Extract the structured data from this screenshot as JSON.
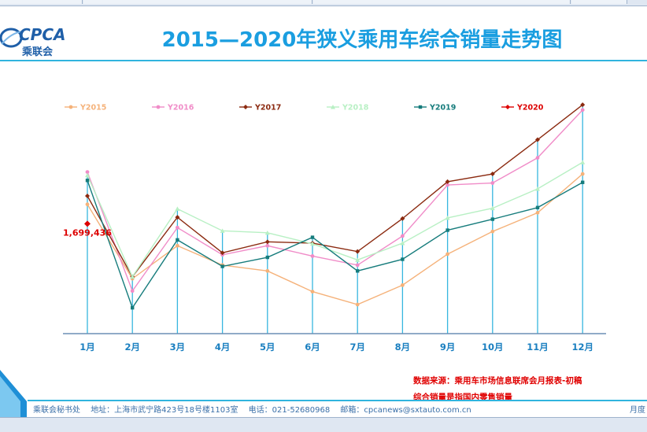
{
  "title": "2015—2020年狭义乘用车综合销量走势图",
  "logo": {
    "text": "CPCA",
    "cn": "乘联会"
  },
  "notes": {
    "source": "数据来源：乘用车市场信息联席会月报表-初稿",
    "definition": "综合销量是指国内零售销量"
  },
  "footer": {
    "org": "乘联会秘书处",
    "address": "地址：上海市武宁路423号18号楼1103室",
    "phone": "电话：021-52680968",
    "email": "邮箱：cpcanews@sxtauto.com.cn",
    "right": "月度"
  },
  "chart_data": {
    "type": "line",
    "categories": [
      "1月",
      "2月",
      "3月",
      "4月",
      "5月",
      "6月",
      "7月",
      "8月",
      "9月",
      "10月",
      "11月",
      "12月"
    ],
    "ylim": [
      0,
      3000000
    ],
    "legend_position": "top",
    "grid": false,
    "series": [
      {
        "name": "Y2015",
        "color": "#f5b27a",
        "marker": "circle",
        "values": [
          2000000,
          850000,
          1360000,
          1060000,
          970000,
          650000,
          450000,
          750000,
          1230000,
          1580000,
          1870000,
          2470000
        ]
      },
      {
        "name": "Y2016",
        "color": "#f08cc8",
        "marker": "circle",
        "values": [
          2500000,
          660000,
          1640000,
          1220000,
          1360000,
          1200000,
          1060000,
          1510000,
          2300000,
          2330000,
          2720000,
          3460000
        ]
      },
      {
        "name": "Y2017",
        "color": "#8b2a10",
        "marker": "diamond",
        "values": [
          2130000,
          880000,
          1800000,
          1250000,
          1420000,
          1400000,
          1270000,
          1780000,
          2350000,
          2470000,
          3000000,
          3540000
        ]
      },
      {
        "name": "Y2018",
        "color": "#b8f0c4",
        "marker": "triangle",
        "values": [
          2450000,
          880000,
          1930000,
          1590000,
          1560000,
          1390000,
          1140000,
          1400000,
          1790000,
          1940000,
          2240000,
          2650000
        ]
      },
      {
        "name": "Y2019",
        "color": "#167c7c",
        "marker": "square",
        "values": [
          2370000,
          400000,
          1450000,
          1040000,
          1180000,
          1490000,
          970000,
          1150000,
          1600000,
          1770000,
          1950000,
          2340000
        ]
      },
      {
        "name": "Y2020",
        "color": "#dd0000",
        "marker": "diamond",
        "values": [
          1699436,
          null,
          null,
          null,
          null,
          null,
          null,
          null,
          null,
          null,
          null,
          null
        ]
      }
    ],
    "data_labels": [
      {
        "series": "Y2020",
        "index": 0,
        "text": "1,699,436"
      }
    ]
  }
}
